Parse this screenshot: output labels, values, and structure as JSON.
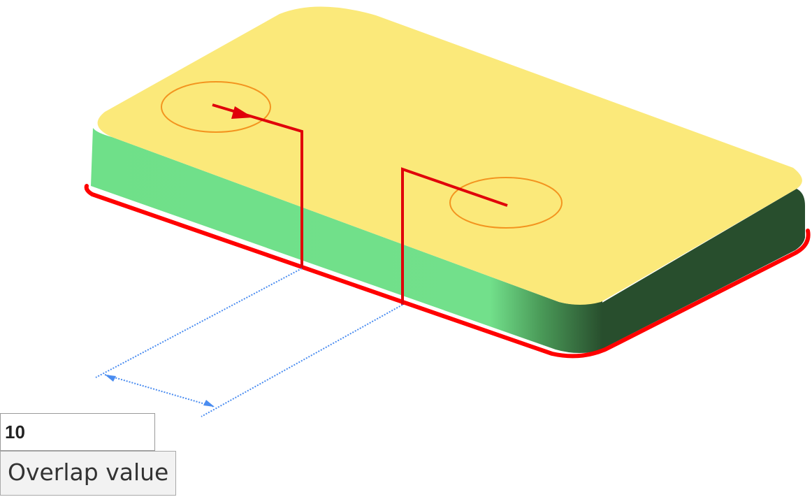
{
  "overlap_input": {
    "value": "10"
  },
  "overlap_label": "Overlap value",
  "colors": {
    "top_face": "#fbe97a",
    "front_face": "#70e08a",
    "side_face": "#284e2d",
    "edge_highlight": "#ff0000",
    "path_line": "#e0000a",
    "circle": "#f3941f",
    "dimension": "#4a8cf0"
  }
}
